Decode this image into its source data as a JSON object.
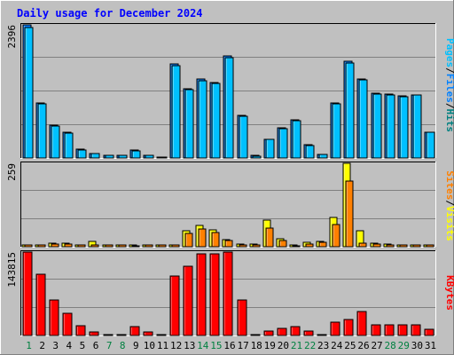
{
  "title": "Daily usage for December 2024",
  "colors": {
    "background": "#c0c0c0",
    "title": "#0000ff",
    "pages": "#00c0ff",
    "files": "#0080ff",
    "hits": "#008080",
    "sites": "#ff8000",
    "visits": "#ffff00",
    "kbytes": "#ff0000",
    "day_weekday": "#000000",
    "day_weekend": "#008040"
  },
  "chart_data": [
    {
      "type": "bar",
      "name": "hits-files-pages",
      "max_label": "2396",
      "ylim": [
        0,
        2396
      ],
      "legend": [
        "Pages",
        "/",
        "Files",
        "/",
        "Hits"
      ],
      "series": [
        {
          "name": "Hits",
          "values": [
            2396,
            990,
            585,
            465,
            160,
            80,
            45,
            45,
            145,
            55,
            20,
            1695,
            1245,
            1425,
            1365,
            1840,
            770,
            40,
            340,
            545,
            690,
            235,
            70,
            995,
            1735,
            1420,
            1160,
            1155,
            1125,
            1140,
            470
          ]
        },
        {
          "name": "Files",
          "values": [
            2396,
            990,
            585,
            465,
            160,
            80,
            45,
            45,
            145,
            55,
            20,
            1695,
            1245,
            1425,
            1365,
            1840,
            770,
            40,
            340,
            545,
            690,
            235,
            70,
            995,
            1735,
            1420,
            1160,
            1155,
            1125,
            1140,
            470
          ]
        },
        {
          "name": "Pages",
          "values": [
            2350,
            975,
            575,
            455,
            150,
            75,
            40,
            40,
            135,
            50,
            15,
            1665,
            1225,
            1390,
            1345,
            1810,
            755,
            35,
            330,
            530,
            675,
            225,
            65,
            975,
            1705,
            1400,
            1145,
            1140,
            1110,
            1130,
            460
          ]
        }
      ]
    },
    {
      "type": "bar",
      "name": "visits-sites",
      "max_label": "259",
      "ylim": [
        0,
        259
      ],
      "legend": [
        "Sites",
        "/",
        "Visits"
      ],
      "series": [
        {
          "name": "Visits",
          "values": [
            6,
            6,
            10,
            12,
            6,
            17,
            6,
            6,
            5,
            6,
            6,
            6,
            49,
            66,
            53,
            22,
            7,
            7,
            83,
            25,
            5,
            13,
            16,
            92,
            259,
            50,
            10,
            7,
            6,
            6,
            6
          ]
        },
        {
          "name": "Sites",
          "values": [
            5,
            5,
            7,
            7,
            5,
            6,
            5,
            5,
            4,
            5,
            5,
            5,
            41,
            56,
            45,
            18,
            6,
            6,
            57,
            18,
            4,
            9,
            14,
            68,
            205,
            10,
            7,
            6,
            5,
            5,
            5
          ]
        }
      ]
    },
    {
      "type": "bar",
      "name": "kbytes",
      "max_label": "143815",
      "ylim": [
        0,
        143815
      ],
      "legend": [
        "KBytes"
      ],
      "series": [
        {
          "name": "KBytes",
          "values": [
            143815,
            106000,
            61000,
            38000,
            17000,
            5500,
            1000,
            1000,
            15000,
            5500,
            1000,
            103000,
            120000,
            140000,
            140000,
            143815,
            61000,
            1000,
            7500,
            13000,
            16000,
            7500,
            1000,
            23000,
            28000,
            41000,
            19000,
            18000,
            18000,
            18000,
            11000
          ]
        }
      ]
    }
  ],
  "x_axis": {
    "days": [
      "1",
      "2",
      "3",
      "4",
      "5",
      "6",
      "7",
      "8",
      "9",
      "10",
      "11",
      "12",
      "13",
      "14",
      "15",
      "16",
      "17",
      "18",
      "19",
      "20",
      "21",
      "22",
      "23",
      "24",
      "25",
      "26",
      "27",
      "28",
      "29",
      "30",
      "31"
    ],
    "weekend_days": [
      "1",
      "7",
      "8",
      "14",
      "15",
      "21",
      "22",
      "28",
      "29"
    ]
  }
}
